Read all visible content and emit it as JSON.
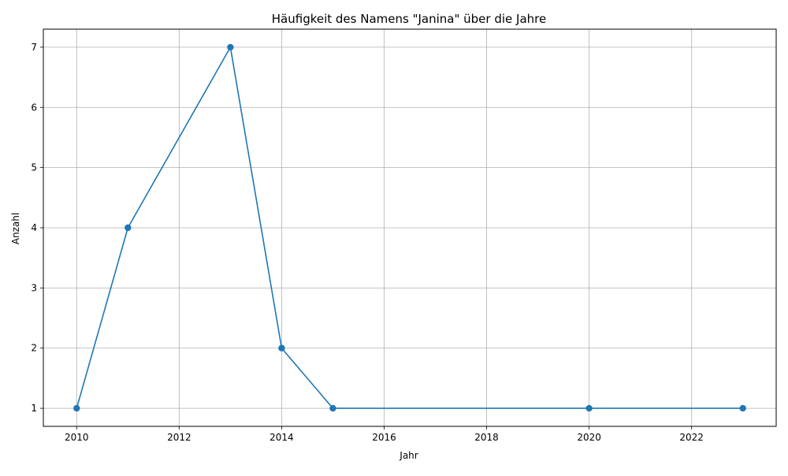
{
  "chart_data": {
    "type": "line",
    "title": "Häufigkeit des Namens \"Janina\" über die Jahre",
    "xlabel": "Jahr",
    "ylabel": "Anzahl",
    "x": [
      2010,
      2011,
      2013,
      2014,
      2015,
      2020,
      2023
    ],
    "series": [
      {
        "values": [
          1,
          4,
          7,
          2,
          1,
          1,
          1
        ],
        "color": "#1f77b4",
        "marker": "circle"
      }
    ],
    "xlim": [
      2009.35,
      2023.65
    ],
    "ylim": [
      0.7,
      7.3
    ],
    "xticks": [
      2010,
      2012,
      2014,
      2016,
      2018,
      2020,
      2022
    ],
    "yticks": [
      1,
      2,
      3,
      4,
      5,
      6,
      7
    ],
    "grid": true,
    "legend": "none"
  }
}
